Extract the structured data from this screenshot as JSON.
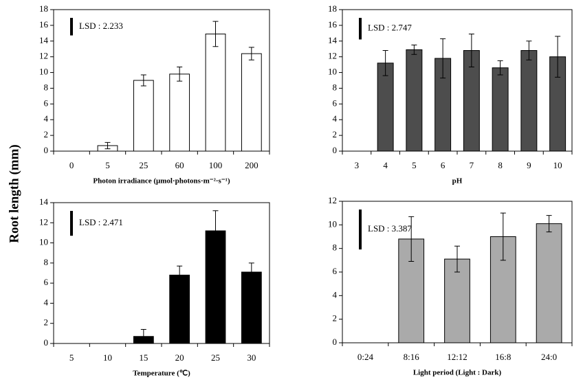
{
  "ylabel": "Root length (mm)",
  "chart_data": [
    {
      "type": "bar",
      "xlabel": "Photon irradiance (μmol·photons·m⁻²·s⁻¹)",
      "categories": [
        "0",
        "5",
        "25",
        "60",
        "100",
        "200"
      ],
      "values": [
        0,
        0.7,
        9.0,
        9.8,
        14.9,
        12.4
      ],
      "errors": [
        0,
        0.4,
        0.7,
        0.9,
        1.6,
        0.8
      ],
      "color": "#ffffff",
      "ylim": [
        0,
        18
      ],
      "yticks": [
        0,
        2,
        4,
        6,
        8,
        10,
        12,
        14,
        16,
        18
      ],
      "lsd": {
        "value": 2.233,
        "label": "LSD : 2.233"
      }
    },
    {
      "type": "bar",
      "xlabel": "pH",
      "categories": [
        "3",
        "4",
        "5",
        "6",
        "7",
        "8",
        "9",
        "10"
      ],
      "values": [
        0,
        11.2,
        12.9,
        11.8,
        12.8,
        10.6,
        12.8,
        12.0
      ],
      "errors": [
        0,
        1.6,
        0.6,
        2.5,
        2.1,
        0.9,
        1.2,
        2.6
      ],
      "color": "#4d4d4d",
      "ylim": [
        0,
        18
      ],
      "yticks": [
        0,
        2,
        4,
        6,
        8,
        10,
        12,
        14,
        16,
        18
      ],
      "lsd": {
        "value": 2.747,
        "label": "LSD : 2.747"
      }
    },
    {
      "type": "bar",
      "xlabel": "Temperature (℃)",
      "categories": [
        "5",
        "10",
        "15",
        "20",
        "25",
        "30"
      ],
      "values": [
        0,
        0,
        0.7,
        6.8,
        11.2,
        7.1
      ],
      "errors": [
        0,
        0,
        0.7,
        0.9,
        2.0,
        0.9
      ],
      "color": "#000000",
      "ylim": [
        0,
        14
      ],
      "yticks": [
        0,
        2,
        4,
        6,
        8,
        10,
        12,
        14
      ],
      "lsd": {
        "value": 2.471,
        "label": "LSD : 2.471"
      }
    },
    {
      "type": "bar",
      "xlabel": "Light period (Light : Dark)",
      "categories": [
        "0:24",
        "8:16",
        "12:12",
        "16:8",
        "24:0"
      ],
      "values": [
        0,
        8.8,
        7.1,
        9.0,
        10.1
      ],
      "errors": [
        0,
        1.9,
        1.1,
        2.0,
        0.7
      ],
      "color": "#aaaaaa",
      "ylim": [
        0,
        12
      ],
      "yticks": [
        0,
        2,
        4,
        6,
        8,
        10,
        12
      ],
      "lsd": {
        "value": 3.387,
        "label": "LSD : 3.387"
      }
    }
  ]
}
